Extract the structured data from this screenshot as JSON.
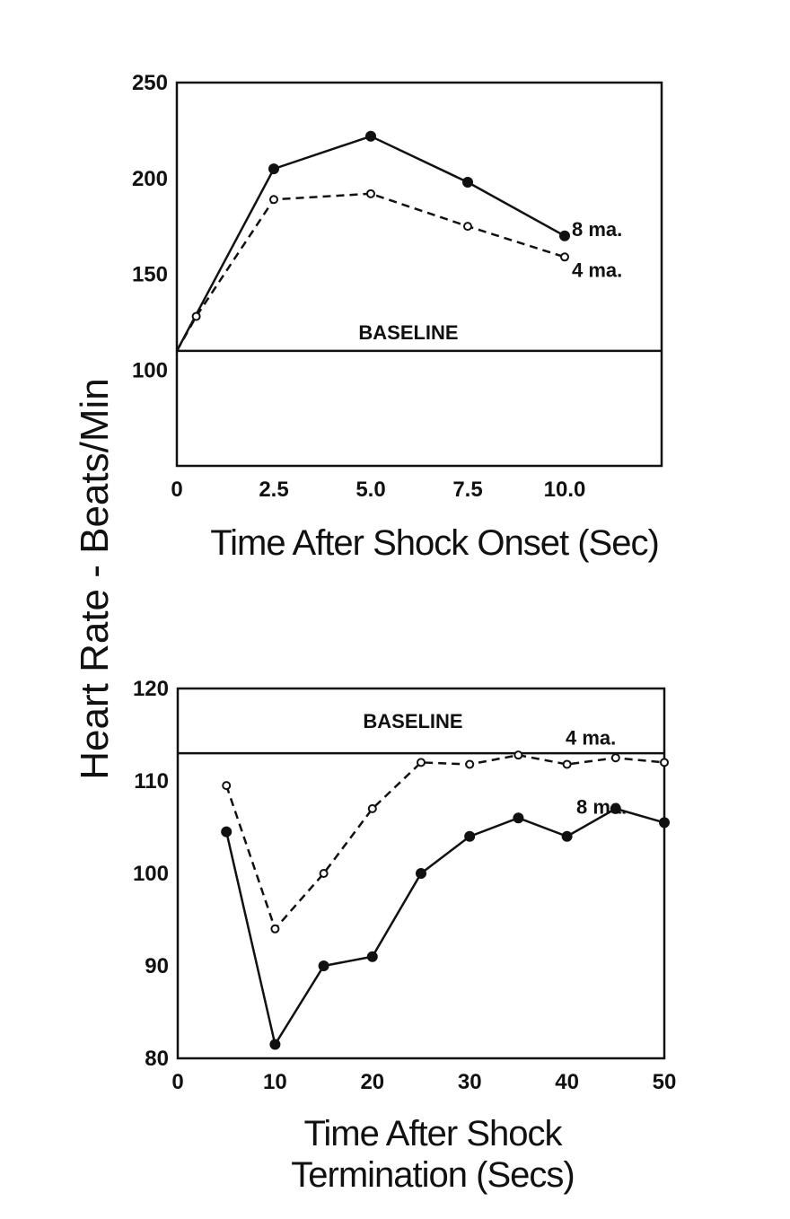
{
  "ylabel": "Heart Rate - Beats/Min",
  "chart_data": [
    {
      "type": "line",
      "xlabel": "Time After Shock Onset (Sec)",
      "ylabel": "Heart Rate - Beats/Min",
      "xlim": [
        0,
        12.5
      ],
      "ylim": [
        50,
        250
      ],
      "x_ticks": [
        "0",
        "2.5",
        "5.0",
        "7.5",
        "10.0"
      ],
      "x_tick_values": [
        0,
        2.5,
        5.0,
        7.5,
        10.0
      ],
      "y_ticks": [
        "100",
        "150",
        "200",
        "250"
      ],
      "y_tick_values": [
        100,
        150,
        200,
        250
      ],
      "baseline": {
        "label": "BASELINE",
        "value": 110
      },
      "series": [
        {
          "name": "8 ma.",
          "style": "solid",
          "marker": "filled",
          "x": [
            0,
            2.5,
            5.0,
            7.5,
            10.0
          ],
          "y": [
            110,
            205,
            222,
            198,
            170
          ]
        },
        {
          "name": "4 ma.",
          "style": "dashed",
          "marker": "open",
          "x": [
            0,
            0.5,
            2.5,
            5.0,
            7.5,
            10.0
          ],
          "y": [
            110,
            128,
            189,
            192,
            175,
            159
          ]
        }
      ]
    },
    {
      "type": "line",
      "xlabel_line1": "Time After Shock",
      "xlabel_line2": "Termination (Secs)",
      "ylabel": "Heart Rate - Beats/Min",
      "xlim": [
        0,
        50
      ],
      "ylim": [
        80,
        120
      ],
      "x_ticks": [
        "0",
        "10",
        "20",
        "30",
        "40",
        "50"
      ],
      "x_tick_values": [
        0,
        10,
        20,
        30,
        40,
        50
      ],
      "y_ticks": [
        "80",
        "90",
        "100",
        "110",
        "120"
      ],
      "y_tick_values": [
        80,
        90,
        100,
        110,
        120
      ],
      "baseline": {
        "label": "BASELINE",
        "value": 113
      },
      "series": [
        {
          "name": "4 ma.",
          "style": "dashed",
          "marker": "open",
          "x": [
            5,
            10,
            15,
            20,
            25,
            30,
            35,
            40,
            45,
            50
          ],
          "y": [
            109.5,
            94,
            100,
            107,
            112,
            111.8,
            112.8,
            111.8,
            112.5,
            112
          ]
        },
        {
          "name": "8 ma.",
          "style": "solid",
          "marker": "filled",
          "x": [
            5,
            10,
            15,
            20,
            25,
            30,
            35,
            40,
            45,
            50
          ],
          "y": [
            104.5,
            81.5,
            90,
            91,
            100,
            104,
            106,
            104,
            107,
            105.5
          ]
        }
      ]
    }
  ]
}
